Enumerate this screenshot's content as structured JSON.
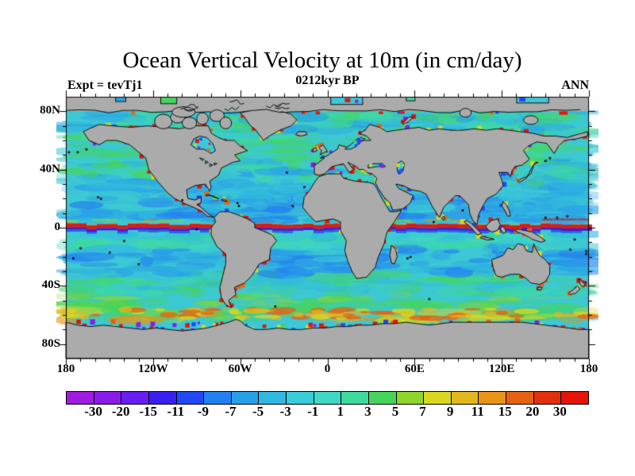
{
  "header": {
    "title": "Ocean Vertical Velocity at 10m (in cm/day)",
    "subtitle": "0212kyr BP",
    "experiment_label": "Expt = tevTj1",
    "season_label": "ANN"
  },
  "axes": {
    "lat_ticks": [
      {
        "label": "80N",
        "lat": 80
      },
      {
        "label": "40N",
        "lat": 40
      },
      {
        "label": "0",
        "lat": 0
      },
      {
        "label": "40S",
        "lat": -40
      },
      {
        "label": "80S",
        "lat": -80
      }
    ],
    "lon_ticks": [
      {
        "label": "180",
        "lon": -180
      },
      {
        "label": "120W",
        "lon": -120
      },
      {
        "label": "60W",
        "lon": -60
      },
      {
        "label": "0",
        "lon": 0
      },
      {
        "label": "60E",
        "lon": 60
      },
      {
        "label": "120E",
        "lon": 120
      },
      {
        "label": "180",
        "lon": 180
      }
    ],
    "minor_tick_interval_deg": 10,
    "lat_major_interval_deg": 40,
    "lon_major_interval_deg": 60
  },
  "colorbar": {
    "levels": [
      -30,
      -20,
      -15,
      -11,
      -9,
      -7,
      -5,
      -3,
      -1,
      1,
      3,
      5,
      7,
      9,
      11,
      15,
      20,
      30
    ],
    "colors": [
      "#a01ce0",
      "#8a1ce8",
      "#681ef0",
      "#3a20f0",
      "#2248f4",
      "#2380f0",
      "#28a0e8",
      "#30b8e0",
      "#3accd8",
      "#40d8c4",
      "#3eda9e",
      "#46d55c",
      "#8ed62c",
      "#d8d820",
      "#e2b81e",
      "#e89418",
      "#e66212",
      "#e0300e",
      "#e41408"
    ]
  },
  "map": {
    "land_color": "#ababab",
    "coastline_color": "#101010",
    "ocean_base_color": "#3cc8d4",
    "frame_color": "#000000"
  },
  "chart_data": {
    "type": "heatmap",
    "title": "Ocean Vertical Velocity at 10m (in cm/day)",
    "subtitle": "0212kyr BP",
    "experiment": "tevTj1",
    "season": "ANN",
    "units": "cm/day",
    "projection": "equirectangular world map",
    "xlim": [
      -180,
      180
    ],
    "ylim": [
      -90,
      90
    ],
    "x_tick_labels": [
      "180",
      "120W",
      "60W",
      "0",
      "60E",
      "120E",
      "180"
    ],
    "y_tick_labels": [
      "80N",
      "40N",
      "0",
      "40S",
      "80S"
    ],
    "colorbar_levels": [
      -30,
      -20,
      -15,
      -11,
      -9,
      -7,
      -5,
      -3,
      -1,
      1,
      3,
      5,
      7,
      9,
      11,
      15,
      20,
      30
    ],
    "colorbar_colors": [
      "#a01ce0",
      "#8a1ce8",
      "#681ef0",
      "#3a20f0",
      "#2248f4",
      "#2380f0",
      "#28a0e8",
      "#30b8e0",
      "#3accd8",
      "#40d8c4",
      "#3eda9e",
      "#46d55c",
      "#8ed62c",
      "#d8d820",
      "#e2b81e",
      "#e89418",
      "#e66212",
      "#e0300e",
      "#e41408"
    ],
    "legend_position": "bottom horizontal colorbar",
    "features": [
      "narrow intense equatorial upwelling band (red, >30 cm/day) spanning the Pacific, Atlantic and Indian oceans just north of 0",
      "strong downwelling band (purple/dark blue, < -11 cm/day) immediately south of the equatorial red band",
      "yellow-green counter-current streaks near 4-6N",
      "alternating red/yellow/purple/blue upwelling-downwelling speckles all along continental coastlines",
      "broad weak field of 1-5 cm/day (cyan/teal) over most open ocean",
      "blue downwelling bands (-3 to -9 cm/day) in the subtropical gyres near 10-30 latitude",
      "green/yellow upwelling belt in the Southern Ocean near 50-62S",
      "continents, Antarctica and the Arctic cap masked in gray with black coastlines"
    ]
  }
}
